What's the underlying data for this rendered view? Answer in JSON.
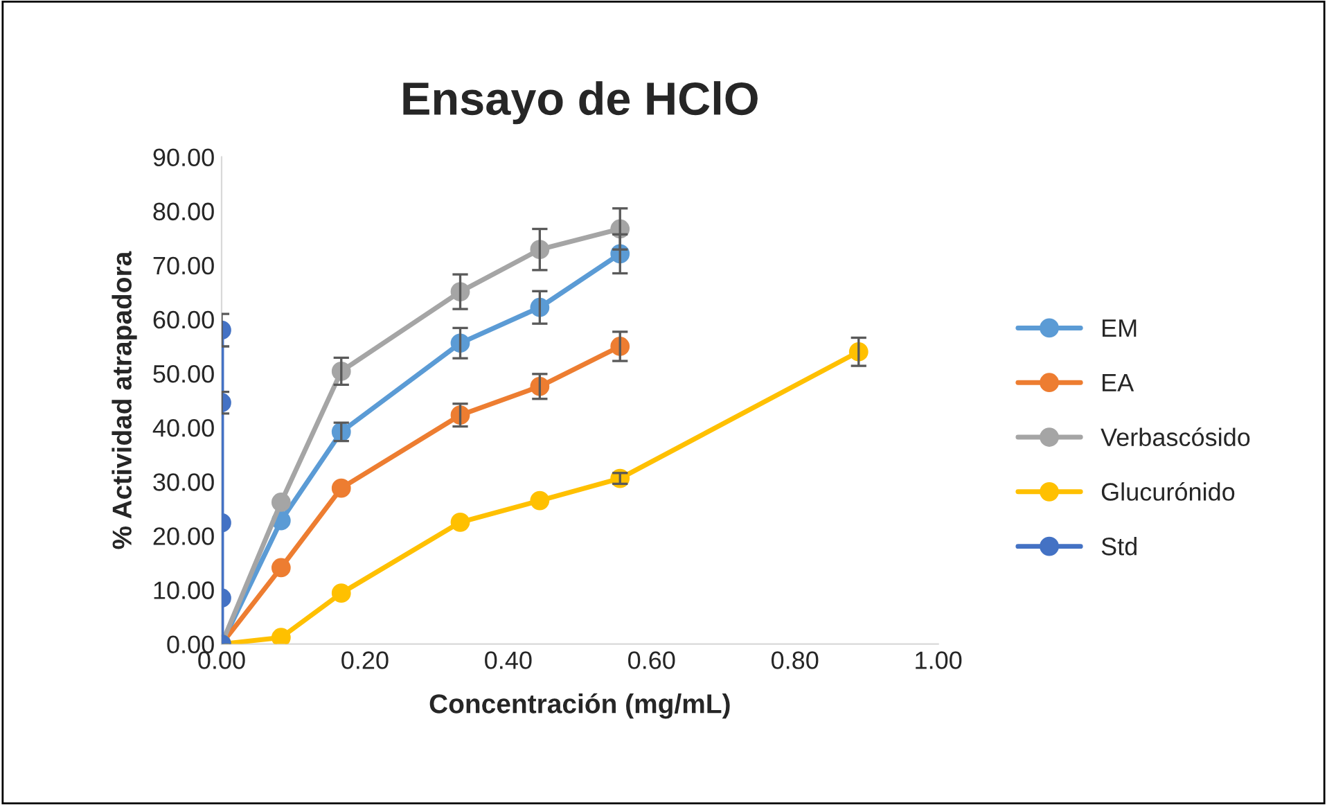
{
  "chart_data": {
    "type": "line",
    "title": "Ensayo de HClO",
    "xlabel": "Concentración (mg/mL)",
    "ylabel": "% Actividad atrapadora",
    "xlim": [
      0,
      1
    ],
    "xticks": [
      {
        "value": 0,
        "label": "0.00"
      },
      {
        "value": 0.2,
        "label": "0.20"
      },
      {
        "value": 0.4,
        "label": "0.40"
      },
      {
        "value": 0.6,
        "label": "0.60"
      },
      {
        "value": 0.8,
        "label": "0.80"
      },
      {
        "value": 1,
        "label": "1.00"
      }
    ],
    "ylim": [
      0,
      90
    ],
    "yticks": [
      {
        "value": 0,
        "label": "0.00"
      },
      {
        "value": 10,
        "label": "10.00"
      },
      {
        "value": 20,
        "label": "20.00"
      },
      {
        "value": 30,
        "label": "30.00"
      },
      {
        "value": 40,
        "label": "40.00"
      },
      {
        "value": 50,
        "label": "50.00"
      },
      {
        "value": 60,
        "label": "60.00"
      },
      {
        "value": 70,
        "label": "70.00"
      },
      {
        "value": 80,
        "label": "80.00"
      },
      {
        "value": 90,
        "label": "90.00"
      }
    ],
    "grid": false,
    "legend": "right",
    "marker": "circle",
    "line_style": "solid",
    "series": [
      {
        "name": "EM",
        "color": "#5b9bd5",
        "x": [
          0,
          0.083,
          0.167,
          0.333,
          0.444,
          0.556
        ],
        "values": [
          0,
          22.8,
          39.2,
          55.6,
          62.2,
          72.1
        ],
        "errors": [
          null,
          null,
          1.7,
          2.8,
          3.0,
          3.6
        ]
      },
      {
        "name": "EA",
        "color": "#ed7d31",
        "x": [
          0,
          0.083,
          0.167,
          0.333,
          0.444,
          0.556
        ],
        "values": [
          0,
          14.1,
          28.8,
          42.3,
          47.6,
          55.0
        ],
        "errors": [
          null,
          null,
          null,
          2.1,
          2.3,
          2.7
        ]
      },
      {
        "name": "Verbascósido",
        "color": "#a5a5a5",
        "x": [
          0,
          0.083,
          0.167,
          0.333,
          0.444,
          0.556
        ],
        "values": [
          0,
          26.2,
          50.4,
          65.1,
          72.9,
          76.7
        ],
        "errors": [
          null,
          null,
          2.5,
          3.2,
          3.8,
          3.8
        ]
      },
      {
        "name": "Glucurónido",
        "color": "#ffc000",
        "x": [
          0,
          0.083,
          0.167,
          0.333,
          0.444,
          0.556,
          0.889
        ],
        "values": [
          0,
          1.2,
          9.4,
          22.5,
          26.5,
          30.6,
          54.0
        ],
        "errors": [
          null,
          null,
          null,
          null,
          null,
          1.0,
          2.6
        ]
      },
      {
        "name": "Std",
        "color": "#4472c4",
        "x": [
          0,
          0,
          0,
          0,
          0
        ],
        "values": [
          0,
          8.5,
          22.4,
          44.6,
          58.0
        ],
        "errors": [
          null,
          null,
          null,
          2.0,
          3.0
        ]
      }
    ]
  }
}
